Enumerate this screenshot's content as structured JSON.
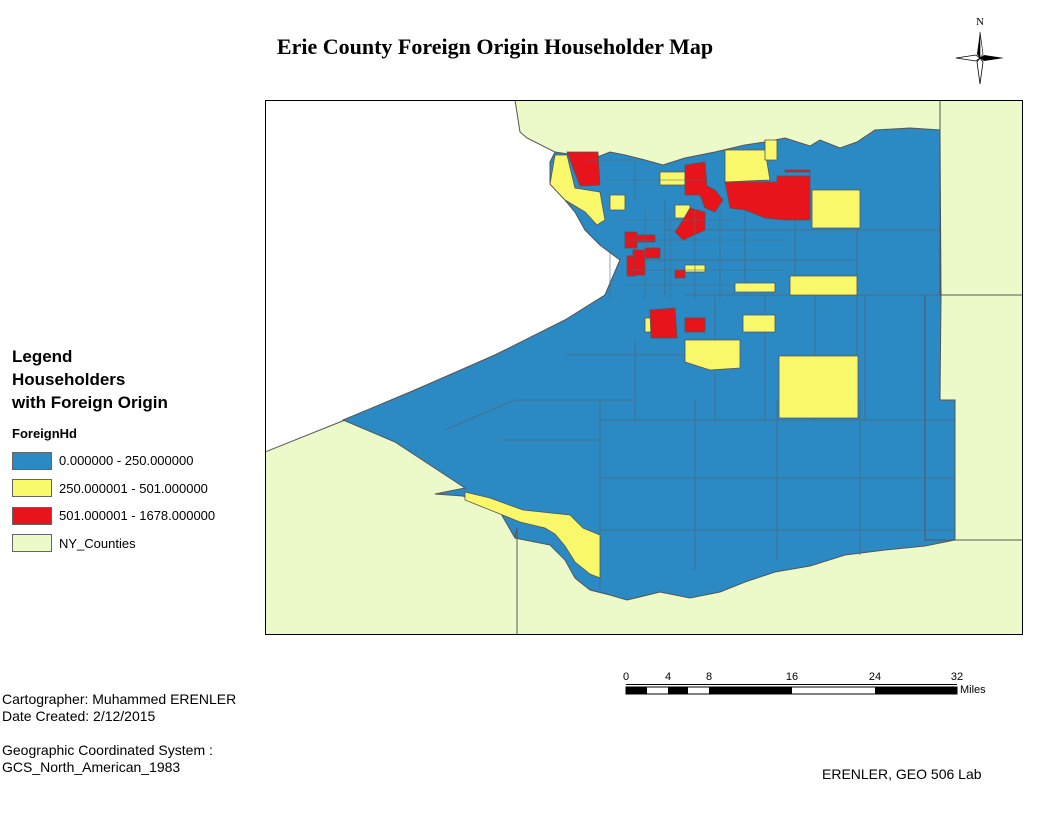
{
  "title": "Erie County Foreign Origin Householder Map",
  "north_arrow": {
    "label": "N"
  },
  "legend": {
    "title_lines": [
      "Legend",
      "Householders",
      "with Foreign Origin"
    ],
    "field": "ForeignHd",
    "items": [
      {
        "label": "0.000000 - 250.000000",
        "color": "#2b8ac4"
      },
      {
        "label": "250.000001 - 501.000000",
        "color": "#f8f86a"
      },
      {
        "label": "501.000001 - 1678.000000",
        "color": "#e8141c"
      },
      {
        "label": "NY_Counties",
        "color": "#ebfac8"
      }
    ]
  },
  "scale_bar": {
    "ticks": [
      "0",
      "4",
      "8",
      "16",
      "24",
      "32"
    ],
    "unit": "Miles"
  },
  "credits": {
    "cartographer": "Cartographer: Muhammed ERENLER",
    "date": "Date Created: 2/12/2015",
    "crs_label": "Geographic Coordinated System :",
    "crs_value": "GCS_North_American_1983"
  },
  "lab_label": "ERENLER, GEO 506 Lab",
  "colors": {
    "water": "#ffffff",
    "county_boundary": "#555555",
    "tract_boundary": "#4a6a7d"
  }
}
